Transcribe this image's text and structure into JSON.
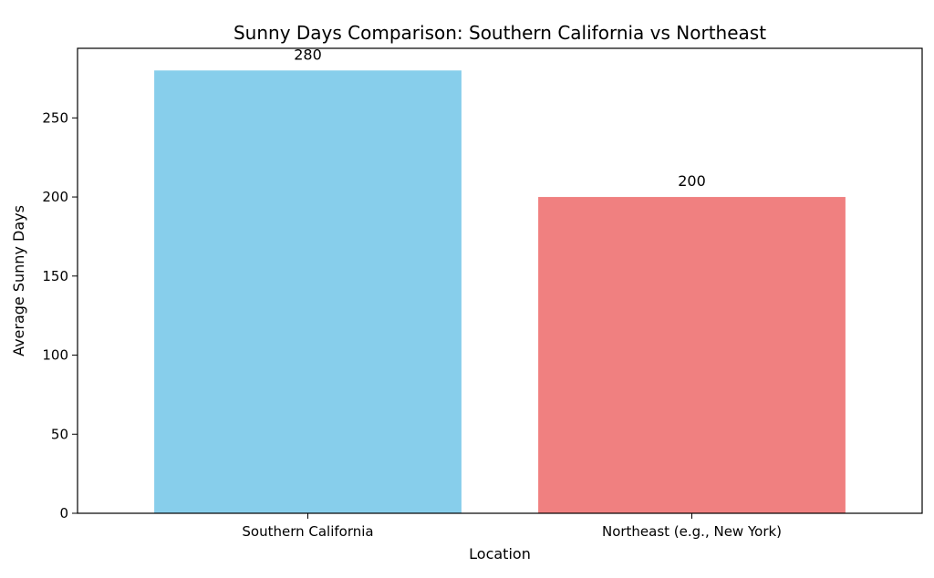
{
  "chart_data": {
    "type": "bar",
    "title": "Sunny Days Comparison: Southern California vs Northeast",
    "xlabel": "Location",
    "ylabel": "Average Sunny Days",
    "categories": [
      "Southern California",
      "Northeast (e.g., New York)"
    ],
    "values": [
      280,
      200
    ],
    "data_labels": [
      "280",
      "200"
    ],
    "colors": [
      "#87ceeb",
      "#f08080"
    ],
    "ylim": [
      0,
      294
    ],
    "yticks": [
      0,
      50,
      100,
      150,
      200,
      250
    ],
    "ytick_labels": [
      "0",
      "50",
      "100",
      "150",
      "200",
      "250"
    ],
    "grid": false,
    "legend": "none"
  }
}
